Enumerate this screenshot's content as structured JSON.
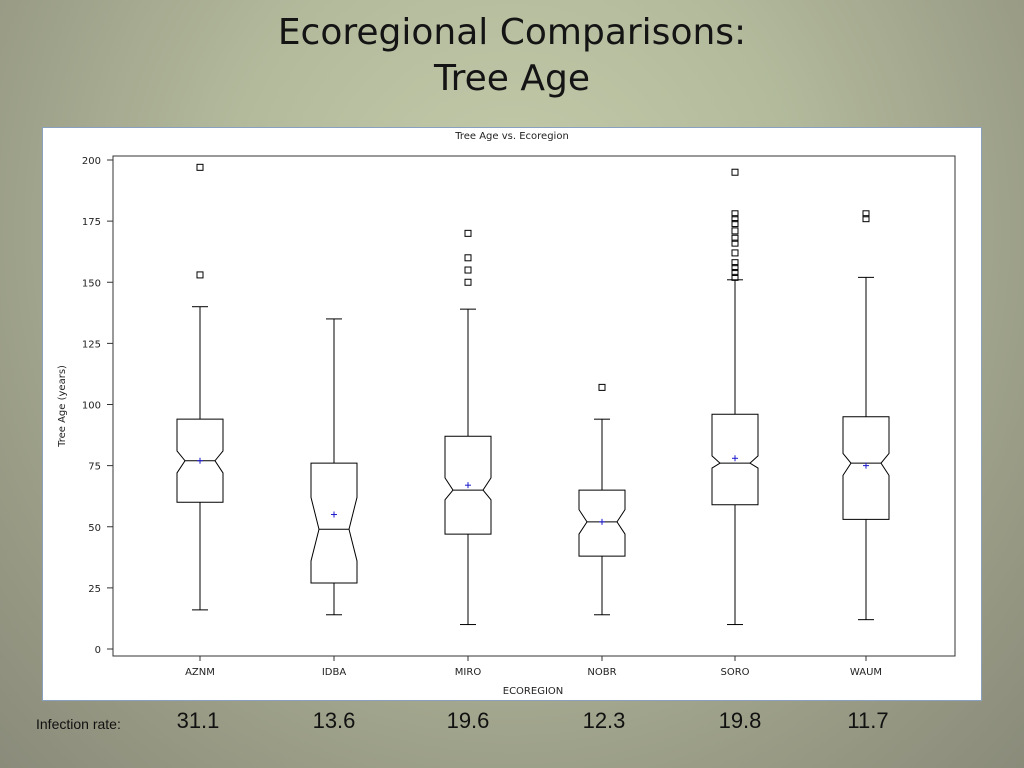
{
  "slide": {
    "title_line1": "Ecoregional Comparisons:",
    "title_line2": "Tree Age"
  },
  "infection": {
    "label": "Infection rate:",
    "rates": [
      "31.1",
      "13.6",
      "19.6",
      "12.3",
      "19.8",
      "11.7"
    ]
  },
  "chart_data": {
    "type": "boxplot",
    "title": "Tree Age vs. Ecoregion",
    "xlabel": "ECOREGION",
    "ylabel": "Tree Age (years)",
    "ylim": [
      0,
      200
    ],
    "yticks": [
      0,
      25,
      50,
      75,
      100,
      125,
      150,
      175,
      200
    ],
    "notched": true,
    "mean_marker": "+",
    "colors": {
      "box": "#000000",
      "mean": "#1a1acc"
    },
    "categories": [
      "AZNM",
      "IDBA",
      "MIRO",
      "NOBR",
      "SORO",
      "WAUM"
    ],
    "boxes": [
      {
        "category": "AZNM",
        "whisker_low": 16,
        "q1": 60,
        "notch_low": 72,
        "median": 77,
        "notch_high": 81,
        "q3": 94,
        "whisker_high": 140,
        "mean": 77,
        "outliers": [
          197,
          153
        ]
      },
      {
        "category": "IDBA",
        "whisker_low": 14,
        "q1": 27,
        "notch_low": 36,
        "median": 49,
        "notch_high": 62,
        "q3": 76,
        "whisker_high": 135,
        "mean": 55,
        "outliers": []
      },
      {
        "category": "MIRO",
        "whisker_low": 10,
        "q1": 47,
        "notch_low": 61,
        "median": 65,
        "notch_high": 70,
        "q3": 87,
        "whisker_high": 139,
        "mean": 67,
        "outliers": [
          170,
          160,
          155,
          150
        ]
      },
      {
        "category": "NOBR",
        "whisker_low": 14,
        "q1": 38,
        "notch_low": 47,
        "median": 52,
        "notch_high": 57,
        "q3": 65,
        "whisker_high": 94,
        "mean": 52,
        "outliers": [
          107
        ]
      },
      {
        "category": "SORO",
        "whisker_low": 10,
        "q1": 59,
        "notch_low": 74,
        "median": 76,
        "notch_high": 79,
        "q3": 96,
        "whisker_high": 151,
        "mean": 78,
        "outliers": [
          195,
          178,
          176,
          174,
          171,
          168,
          166,
          162,
          158,
          156,
          154,
          152
        ]
      },
      {
        "category": "WAUM",
        "whisker_low": 12,
        "q1": 53,
        "notch_low": 71,
        "median": 76,
        "notch_high": 80,
        "q3": 95,
        "whisker_high": 152,
        "mean": 75,
        "outliers": [
          178,
          176
        ]
      }
    ]
  }
}
